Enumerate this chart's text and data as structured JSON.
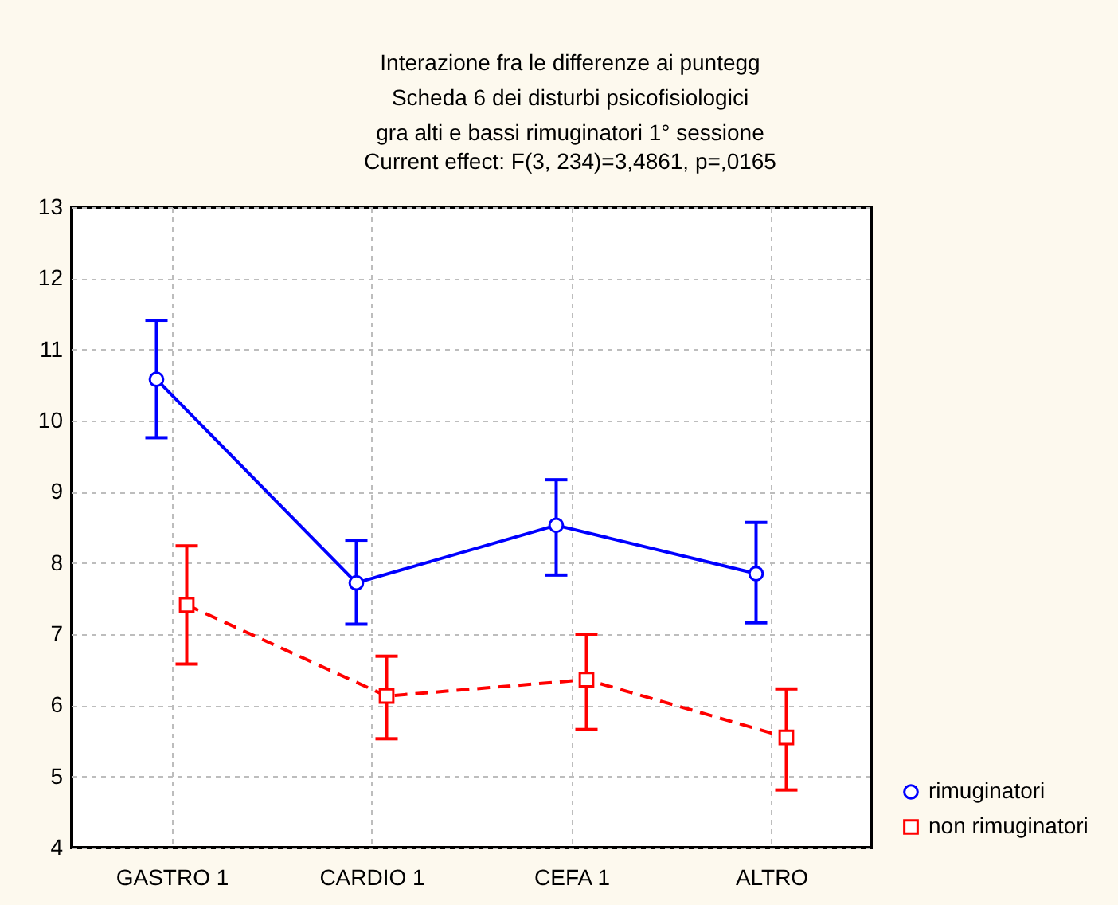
{
  "chart_data": {
    "type": "line",
    "title": [
      "Interazione fra le differenze ai puntegg",
      "Scheda 6 dei disturbi psicofisiologici",
      "gra alti e bassi rimuginatori 1° sessione"
    ],
    "subtitle": "Current effect: F(3, 234)=3,4861, p=,0165",
    "categories": [
      "GASTRO 1",
      "CARDIO 1",
      "CEFA 1",
      "ALTRO"
    ],
    "ylim": [
      4,
      13
    ],
    "yticks": [
      4,
      5,
      6,
      7,
      8,
      9,
      10,
      11,
      12,
      13
    ],
    "grid": true,
    "legend": "bottom right",
    "series": [
      {
        "name": "rimuginatori",
        "color": "#0000ff",
        "marker": "circle",
        "line_style": "solid",
        "values": [
          10.58,
          7.72,
          8.53,
          7.85
        ],
        "errors": [
          [
            9.76,
            11.41
          ],
          [
            7.14,
            8.32
          ],
          [
            7.83,
            9.17
          ],
          [
            7.16,
            8.57
          ]
        ]
      },
      {
        "name": "non rimuginatori",
        "color": "#ff0000",
        "marker": "square",
        "line_style": "dashed",
        "values": [
          7.41,
          6.13,
          6.36,
          5.55
        ],
        "errors": [
          [
            6.58,
            8.24
          ],
          [
            5.53,
            6.69
          ],
          [
            5.66,
            7.0
          ],
          [
            4.81,
            6.23
          ]
        ]
      }
    ]
  }
}
